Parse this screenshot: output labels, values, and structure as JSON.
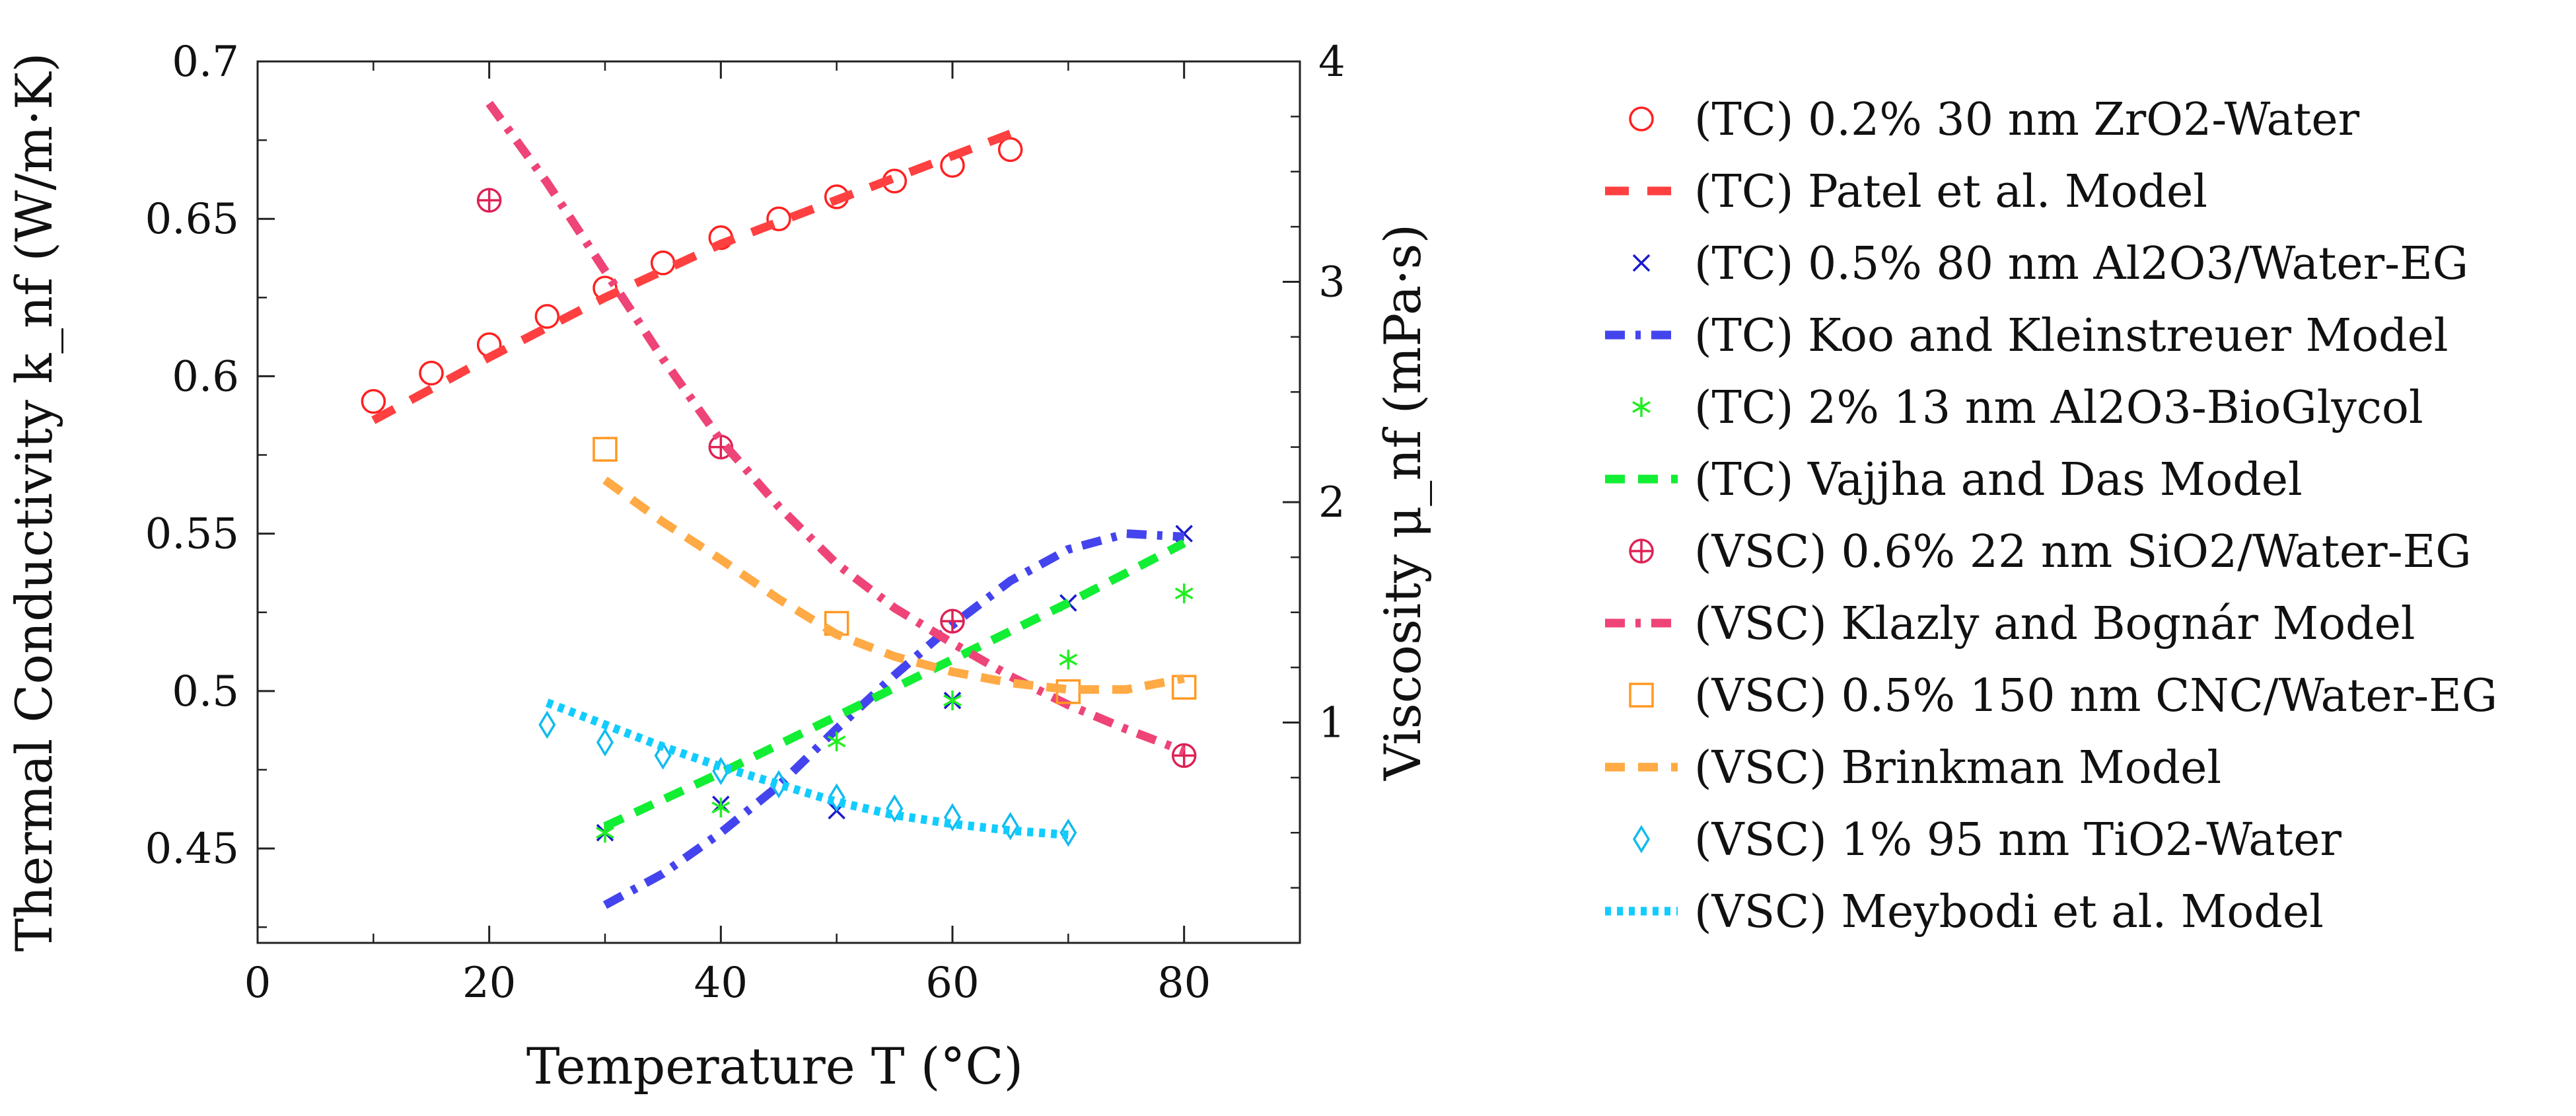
{
  "chart_data": {
    "type": "line",
    "xlabel": "Temperature T (°C)",
    "ylabel_left": "Thermal Conductivity k_nf (W/m·K)",
    "ylabel_right": "Viscosity μ_nf (mPa·s)",
    "xlim": [
      0,
      90
    ],
    "ylim_left": [
      0.42,
      0.7
    ],
    "ylim_right": [
      0.0,
      4.0
    ],
    "x_ticks": [
      "0",
      "20",
      "40",
      "60",
      "80"
    ],
    "x_tick_values": [
      0,
      20,
      40,
      60,
      80
    ],
    "y_ticks_left": [
      "0.45",
      "0.5",
      "0.55",
      "0.6",
      "0.65",
      "0.7"
    ],
    "y_tick_values_left": [
      0.45,
      0.5,
      0.55,
      0.6,
      0.65,
      0.7
    ],
    "y_ticks_right": [
      "1",
      "2",
      "3",
      "4"
    ],
    "y_tick_values_right": [
      1,
      2,
      3,
      4
    ],
    "grid": false,
    "legend_position": "right-outside",
    "series": [
      {
        "name": "(TC) 0.2% 30 nm ZrO2-Water",
        "kind": "marker",
        "marker": "circle",
        "color": "#ff2020",
        "axis": "left",
        "x": [
          10,
          15,
          20,
          25,
          30,
          35,
          40,
          45,
          50,
          55,
          60,
          65
        ],
        "y": [
          0.592,
          0.601,
          0.61,
          0.619,
          0.628,
          0.636,
          0.644,
          0.65,
          0.657,
          0.662,
          0.667,
          0.672
        ]
      },
      {
        "name": "(TC) Patel et al. Model",
        "kind": "line",
        "dash": "long-dash",
        "color": "#ff4040",
        "axis": "left",
        "x": [
          10,
          20,
          30,
          40,
          50,
          60,
          65
        ],
        "y": [
          0.586,
          0.606,
          0.625,
          0.642,
          0.656,
          0.67,
          0.677
        ]
      },
      {
        "name": "(TC) 0.5% 80 nm Al2O3/Water-EG",
        "kind": "marker",
        "marker": "x",
        "color": "#1a1acc",
        "axis": "left",
        "x": [
          30,
          40,
          50,
          60,
          70,
          80
        ],
        "y": [
          0.455,
          0.464,
          0.462,
          0.497,
          0.528,
          0.55
        ]
      },
      {
        "name": "(TC) Koo and Kleinstreuer Model",
        "kind": "line",
        "dash": "dash-dot",
        "color": "#4444ee",
        "axis": "left",
        "x": [
          30,
          35,
          40,
          45,
          50,
          55,
          60,
          65,
          70,
          75,
          80
        ],
        "y": [
          0.432,
          0.442,
          0.455,
          0.47,
          0.488,
          0.505,
          0.521,
          0.535,
          0.545,
          0.55,
          0.549
        ]
      },
      {
        "name": "(TC) 2% 13 nm Al2O3-BioGlycol",
        "kind": "marker",
        "marker": "star",
        "color": "#22ee22",
        "axis": "left",
        "x": [
          30,
          40,
          50,
          60,
          70,
          80
        ],
        "y": [
          0.455,
          0.463,
          0.484,
          0.497,
          0.51,
          0.531
        ]
      },
      {
        "name": "(TC) Vajjha and Das Model",
        "kind": "line",
        "dash": "dash",
        "color": "#11ee33",
        "axis": "left",
        "x": [
          30,
          40,
          50,
          60,
          70,
          80
        ],
        "y": [
          0.457,
          0.474,
          0.492,
          0.51,
          0.528,
          0.547
        ]
      },
      {
        "name": "(VSC) 0.6% 22 nm SiO2/Water-EG",
        "kind": "marker",
        "marker": "circle-plus",
        "color": "#dd2255",
        "axis": "right",
        "x": [
          20,
          40,
          60,
          80
        ],
        "y": [
          3.37,
          2.25,
          1.46,
          0.85
        ]
      },
      {
        "name": "(VSC) Klazly and Bognár Model",
        "kind": "line",
        "dash": "dash-dot",
        "color": "#ee4477",
        "axis": "right",
        "x": [
          20,
          25,
          30,
          35,
          40,
          45,
          50,
          55,
          60,
          65,
          70,
          75,
          80
        ],
        "y": [
          3.81,
          3.45,
          3.05,
          2.65,
          2.28,
          1.98,
          1.72,
          1.52,
          1.36,
          1.21,
          1.08,
          0.97,
          0.87
        ]
      },
      {
        "name": "(VSC) 0.5% 150 nm CNC/Water-EG",
        "kind": "marker",
        "marker": "square",
        "color": "#ff9922",
        "axis": "right",
        "x": [
          30,
          50,
          70,
          80
        ],
        "y": [
          2.24,
          1.45,
          1.14,
          1.16
        ]
      },
      {
        "name": "(VSC) Brinkman Model",
        "kind": "line",
        "dash": "dash",
        "color": "#ffaa44",
        "axis": "right",
        "x": [
          30,
          35,
          40,
          45,
          50,
          55,
          60,
          65,
          70,
          75,
          80
        ],
        "y": [
          2.1,
          1.91,
          1.74,
          1.56,
          1.4,
          1.3,
          1.23,
          1.18,
          1.15,
          1.15,
          1.2
        ]
      },
      {
        "name": "(VSC) 1% 95 nm TiO2-Water",
        "kind": "marker",
        "marker": "diamond",
        "color": "#11bbee",
        "axis": "right",
        "x": [
          25,
          30,
          35,
          40,
          45,
          50,
          55,
          60,
          65,
          70
        ],
        "y": [
          0.99,
          0.91,
          0.85,
          0.78,
          0.72,
          0.66,
          0.61,
          0.57,
          0.53,
          0.5
        ]
      },
      {
        "name": "(VSC) Meybodi et al. Model",
        "kind": "line",
        "dash": "dot",
        "color": "#11ccff",
        "axis": "right",
        "x": [
          25,
          30,
          35,
          40,
          45,
          50,
          55,
          60,
          65,
          70
        ],
        "y": [
          1.09,
          0.99,
          0.89,
          0.8,
          0.72,
          0.64,
          0.58,
          0.54,
          0.51,
          0.49
        ]
      }
    ]
  }
}
